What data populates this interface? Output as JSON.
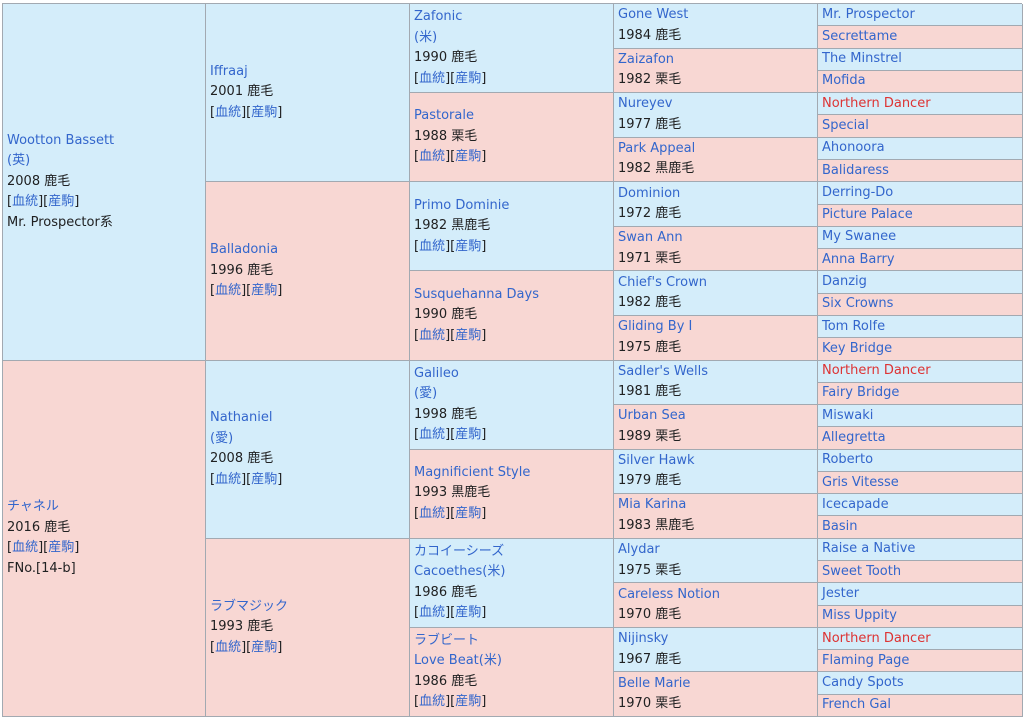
{
  "links": {
    "pedigree": "血統",
    "progeny": "産駒"
  },
  "g1": [
    {
      "name": "Wootton Bassett",
      "origin": "(英)",
      "year_color": "2008 鹿毛",
      "line": "Mr. Prospector系",
      "sex": "m"
    },
    {
      "name": "チャネル",
      "year_color": "2016 鹿毛",
      "family": "FNo.[14-b]",
      "sex": "f"
    }
  ],
  "g2": [
    {
      "name": "Iffraaj",
      "year_color": "2001 鹿毛",
      "sex": "m"
    },
    {
      "name": "Balladonia",
      "year_color": "1996 鹿毛",
      "sex": "f"
    },
    {
      "name": "Nathaniel",
      "origin": "(愛)",
      "year_color": "2008 鹿毛",
      "sex": "m"
    },
    {
      "name": "ラブマジック",
      "year_color": "1993 鹿毛",
      "sex": "f"
    }
  ],
  "g3": [
    {
      "name": "Zafonic",
      "origin": "(米)",
      "year_color": "1990 鹿毛",
      "sex": "m"
    },
    {
      "name": "Pastorale",
      "year_color": "1988 栗毛",
      "sex": "f"
    },
    {
      "name": "Primo Dominie",
      "year_color": "1982 黒鹿毛",
      "sex": "m"
    },
    {
      "name": "Susquehanna Days",
      "year_color": "1990 鹿毛",
      "sex": "f"
    },
    {
      "name": "Galileo",
      "origin": "(愛)",
      "year_color": "1998 鹿毛",
      "sex": "m"
    },
    {
      "name": "Magnificient Style",
      "year_color": "1993 黒鹿毛",
      "sex": "f"
    },
    {
      "name": "カコイーシーズ",
      "alt": "Cacoethes(米)",
      "year_color": "1986 鹿毛",
      "sex": "m"
    },
    {
      "name": "ラブビート",
      "alt": "Love Beat(米)",
      "year_color": "1986 鹿毛",
      "sex": "f"
    }
  ],
  "g4": [
    {
      "name": "Gone West",
      "year_color": "1984 鹿毛",
      "sex": "m"
    },
    {
      "name": "Zaizafon",
      "year_color": "1982 栗毛",
      "sex": "f"
    },
    {
      "name": "Nureyev",
      "year_color": "1977 鹿毛",
      "sex": "m"
    },
    {
      "name": "Park Appeal",
      "year_color": "1982 黒鹿毛",
      "sex": "f"
    },
    {
      "name": "Dominion",
      "year_color": "1972 鹿毛",
      "sex": "m"
    },
    {
      "name": "Swan Ann",
      "year_color": "1971 栗毛",
      "sex": "f"
    },
    {
      "name": "Chief's Crown",
      "year_color": "1982 鹿毛",
      "sex": "m"
    },
    {
      "name": "Gliding By I",
      "year_color": "1975 鹿毛",
      "sex": "f"
    },
    {
      "name": "Sadler's Wells",
      "year_color": "1981 鹿毛",
      "sex": "m"
    },
    {
      "name": "Urban Sea",
      "year_color": "1989 栗毛",
      "sex": "f"
    },
    {
      "name": "Silver Hawk",
      "year_color": "1979 鹿毛",
      "sex": "m"
    },
    {
      "name": "Mia Karina",
      "year_color": "1983 黒鹿毛",
      "sex": "f"
    },
    {
      "name": "Alydar",
      "year_color": "1975 栗毛",
      "sex": "m"
    },
    {
      "name": "Careless Notion",
      "year_color": "1970 鹿毛",
      "sex": "f"
    },
    {
      "name": "Nijinsky",
      "year_color": "1967 鹿毛",
      "sex": "m"
    },
    {
      "name": "Belle Marie",
      "year_color": "1970 栗毛",
      "sex": "f"
    }
  ],
  "g5": [
    {
      "name": "Mr. Prospector",
      "sex": "m"
    },
    {
      "name": "Secrettame",
      "sex": "f"
    },
    {
      "name": "The Minstrel",
      "sex": "m"
    },
    {
      "name": "Mofida",
      "sex": "f"
    },
    {
      "name": "Northern Dancer",
      "sex": "m",
      "highlight": true
    },
    {
      "name": "Special",
      "sex": "f"
    },
    {
      "name": "Ahonoora",
      "sex": "m"
    },
    {
      "name": "Balidaress",
      "sex": "f"
    },
    {
      "name": "Derring-Do",
      "sex": "m"
    },
    {
      "name": "Picture Palace",
      "sex": "f"
    },
    {
      "name": "My Swanee",
      "sex": "m"
    },
    {
      "name": "Anna Barry",
      "sex": "f"
    },
    {
      "name": "Danzig",
      "sex": "m"
    },
    {
      "name": "Six Crowns",
      "sex": "f"
    },
    {
      "name": "Tom Rolfe",
      "sex": "m"
    },
    {
      "name": "Key Bridge",
      "sex": "f"
    },
    {
      "name": "Northern Dancer",
      "sex": "m",
      "highlight": true
    },
    {
      "name": "Fairy Bridge",
      "sex": "f"
    },
    {
      "name": "Miswaki",
      "sex": "m"
    },
    {
      "name": "Allegretta",
      "sex": "f"
    },
    {
      "name": "Roberto",
      "sex": "m"
    },
    {
      "name": "Gris Vitesse",
      "sex": "f"
    },
    {
      "name": "Icecapade",
      "sex": "m"
    },
    {
      "name": "Basin",
      "sex": "f"
    },
    {
      "name": "Raise a Native",
      "sex": "m"
    },
    {
      "name": "Sweet Tooth",
      "sex": "f"
    },
    {
      "name": "Jester",
      "sex": "m"
    },
    {
      "name": "Miss Uppity",
      "sex": "f"
    },
    {
      "name": "Northern Dancer",
      "sex": "m",
      "highlight": true
    },
    {
      "name": "Flaming Page",
      "sex": "f"
    },
    {
      "name": "Candy Spots",
      "sex": "m"
    },
    {
      "name": "French Gal",
      "sex": "f"
    }
  ]
}
